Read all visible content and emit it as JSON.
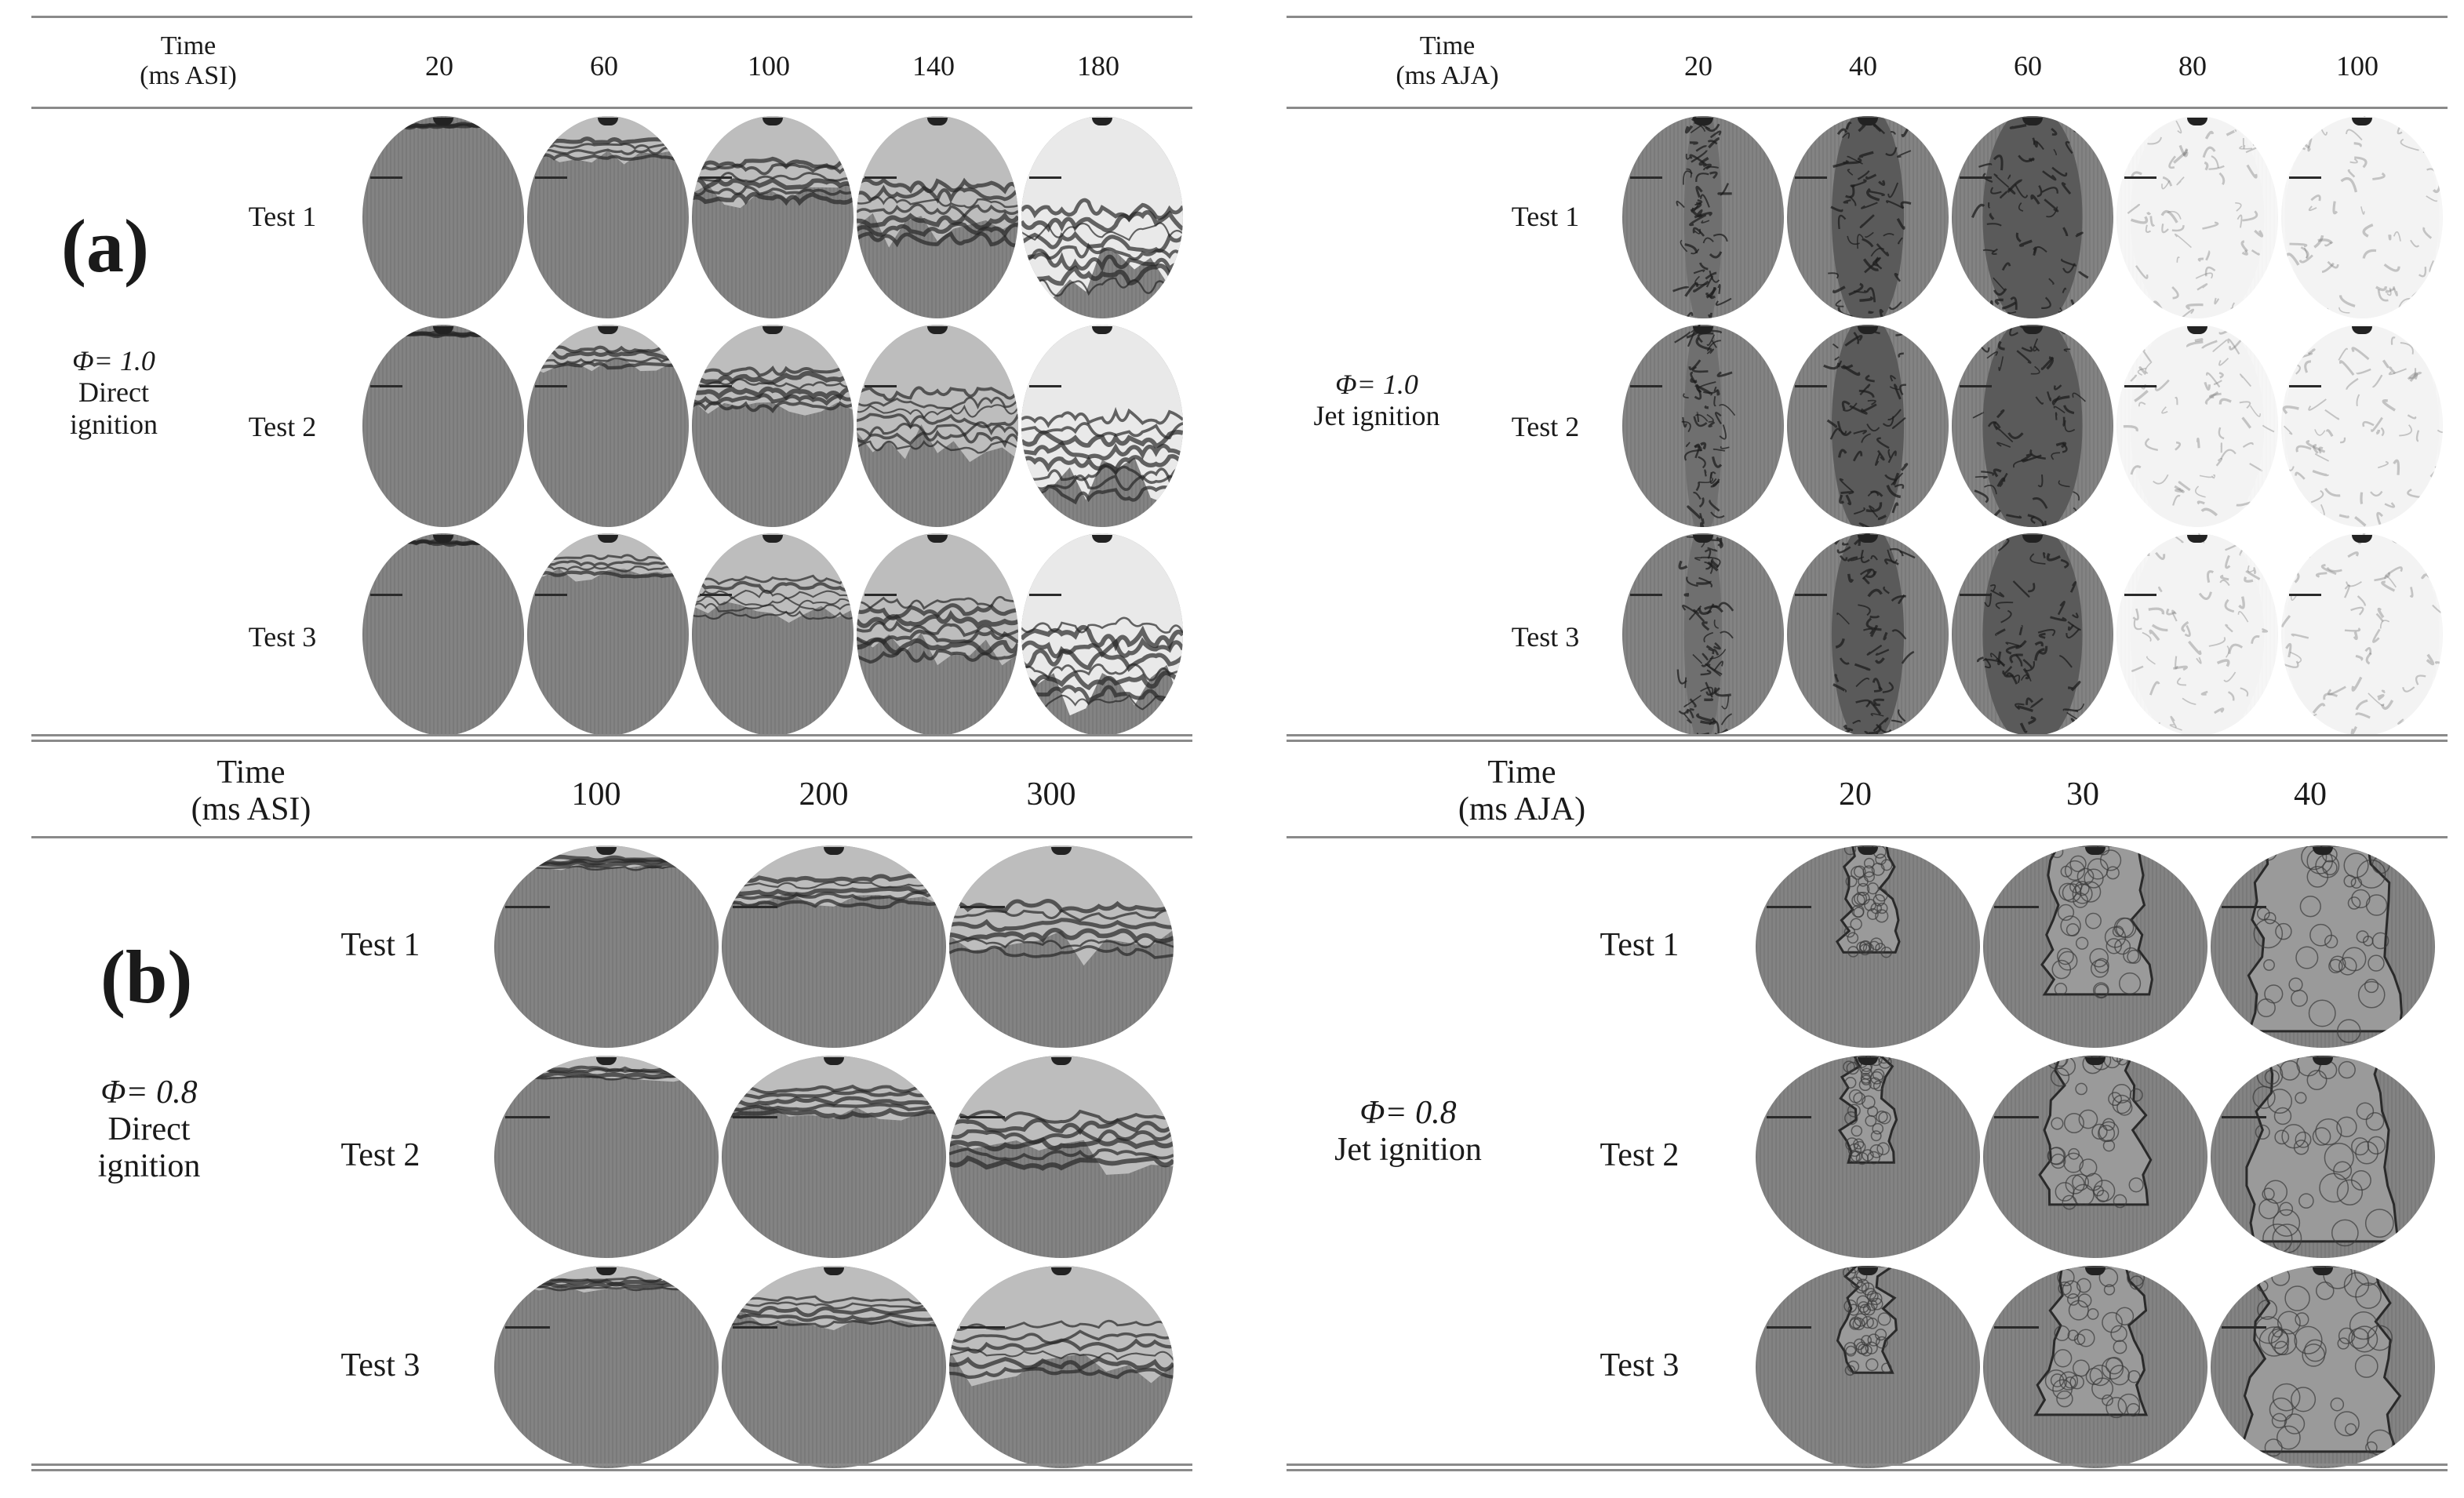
{
  "panels": {
    "a": {
      "letter": "(a)",
      "direct": {
        "header_time": "Time",
        "header_unit": "(ms ASI)",
        "columns": [
          "20",
          "60",
          "100",
          "140",
          "180"
        ],
        "condition": [
          "Φ= 1.0",
          "Direct",
          "ignition"
        ],
        "rows": [
          "Test 1",
          "Test 2",
          "Test 3"
        ]
      },
      "jet": {
        "header_time": "Time",
        "header_unit": "(ms AJA)",
        "columns": [
          "20",
          "40",
          "60",
          "80",
          "100"
        ],
        "condition": [
          "Φ= 1.0",
          "Jet ignition"
        ],
        "rows": [
          "Test 1",
          "Test 2",
          "Test 3"
        ]
      }
    },
    "b": {
      "letter": "(b)",
      "direct": {
        "header_time": "Time",
        "header_unit": "(ms ASI)",
        "columns": [
          "100",
          "200",
          "300"
        ],
        "condition": [
          "Φ= 0.8",
          "Direct",
          "ignition"
        ],
        "rows": [
          "Test 1",
          "Test 2",
          "Test 3"
        ]
      },
      "jet": {
        "header_time": "Time",
        "header_unit": "(ms AJA)",
        "columns": [
          "20",
          "30",
          "40"
        ],
        "condition": [
          "Φ= 0.8",
          "Jet ignition"
        ],
        "rows": [
          "Test 1",
          "Test 2",
          "Test 3"
        ]
      }
    }
  }
}
